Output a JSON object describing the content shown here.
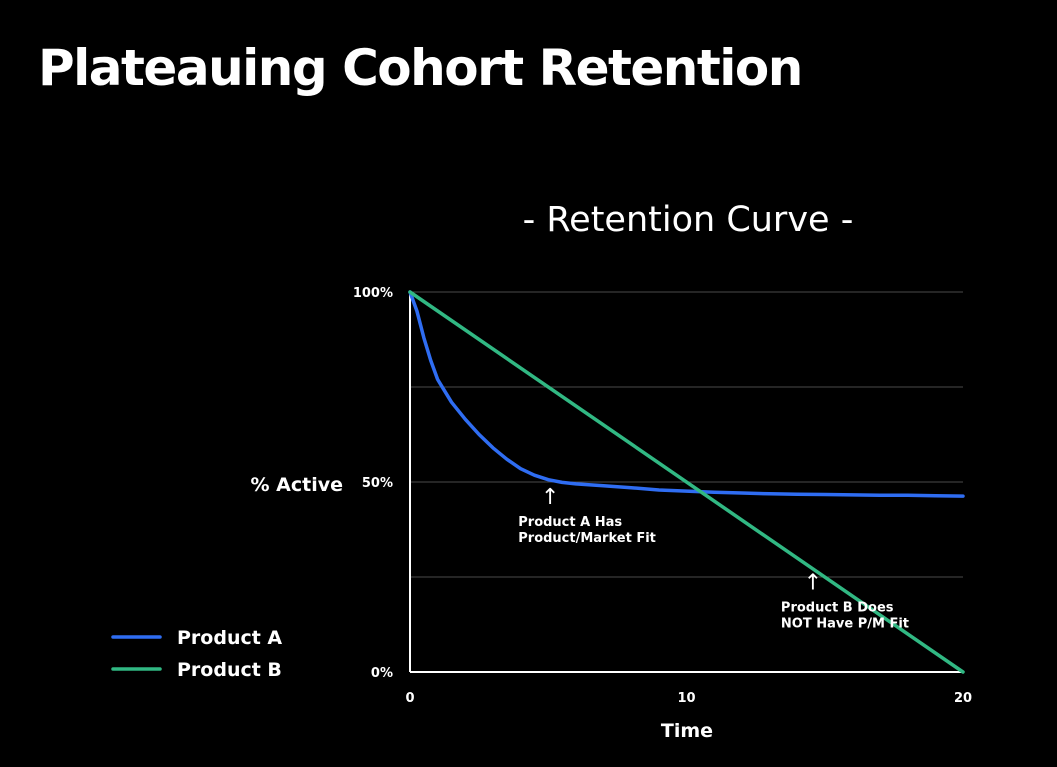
{
  "slide": {
    "title": "Plateauing Cohort Retention"
  },
  "colors": {
    "background": "#000000",
    "product_a": "#2f6df2",
    "product_b": "#31b883",
    "gridline": "#4a4a4a",
    "text": "#ffffff"
  },
  "chart_data": {
    "type": "line",
    "title": "- Retention Curve -",
    "xlabel": "Time",
    "ylabel": "% Active",
    "xlim": [
      0,
      20
    ],
    "ylim": [
      0,
      100
    ],
    "x_ticks": [
      "0",
      "10",
      "20"
    ],
    "y_ticks": [
      "0%",
      "50%",
      "100%"
    ],
    "y_tick_values": [
      0,
      50,
      100
    ],
    "gridlines_y": [
      25,
      50,
      75,
      100
    ],
    "grid": true,
    "legend_position": "bottom-left",
    "series": [
      {
        "name": "Product A",
        "color": "#2f6df2",
        "x": [
          0,
          0.25,
          0.5,
          0.75,
          1,
          1.5,
          2,
          2.5,
          3,
          3.5,
          4,
          4.5,
          5,
          5.5,
          6,
          7,
          8,
          9,
          10,
          11,
          12,
          13,
          14,
          15,
          16,
          17,
          18,
          19,
          20
        ],
        "y": [
          100,
          95,
          88,
          82,
          77,
          71,
          66.5,
          62.5,
          59,
          56,
          53.5,
          51.8,
          50.6,
          49.9,
          49.5,
          49,
          48.5,
          47.9,
          47.6,
          47.3,
          47.1,
          46.9,
          46.8,
          46.7,
          46.6,
          46.5,
          46.5,
          46.4,
          46.3
        ]
      },
      {
        "name": "Product B",
        "color": "#31b883",
        "x": [
          0,
          20
        ],
        "y": [
          100,
          0
        ]
      }
    ],
    "annotations": [
      {
        "lines": [
          "Product A Has",
          "Product/Market Fit"
        ],
        "arrow": "↑",
        "target_x": 5,
        "target_y": 50
      },
      {
        "lines": [
          "Product B Does",
          "NOT Have P/M Fit"
        ],
        "arrow": "↑",
        "target_x": 14.5,
        "target_y": 27.5
      }
    ]
  }
}
